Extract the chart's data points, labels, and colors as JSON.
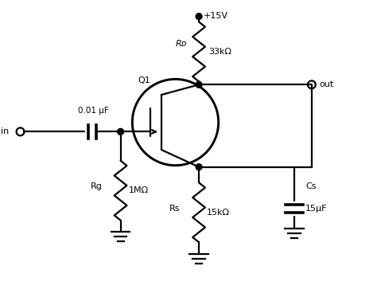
{
  "bg_color": "#ffffff",
  "line_color": "#000000",
  "lw": 1.6,
  "labels": {
    "in": "in",
    "out": "out",
    "vdd": "+15V",
    "Q1": "Q1",
    "RD": "Rᴅ",
    "RD_val": "33kΩ",
    "Rg": "Rg",
    "Rg_val": "1MΩ",
    "Rs": "Rs",
    "Rs_val": "15kΩ",
    "Cs": "Cs",
    "Cs_val": "15μF",
    "cap_val": "0.01 μF"
  }
}
